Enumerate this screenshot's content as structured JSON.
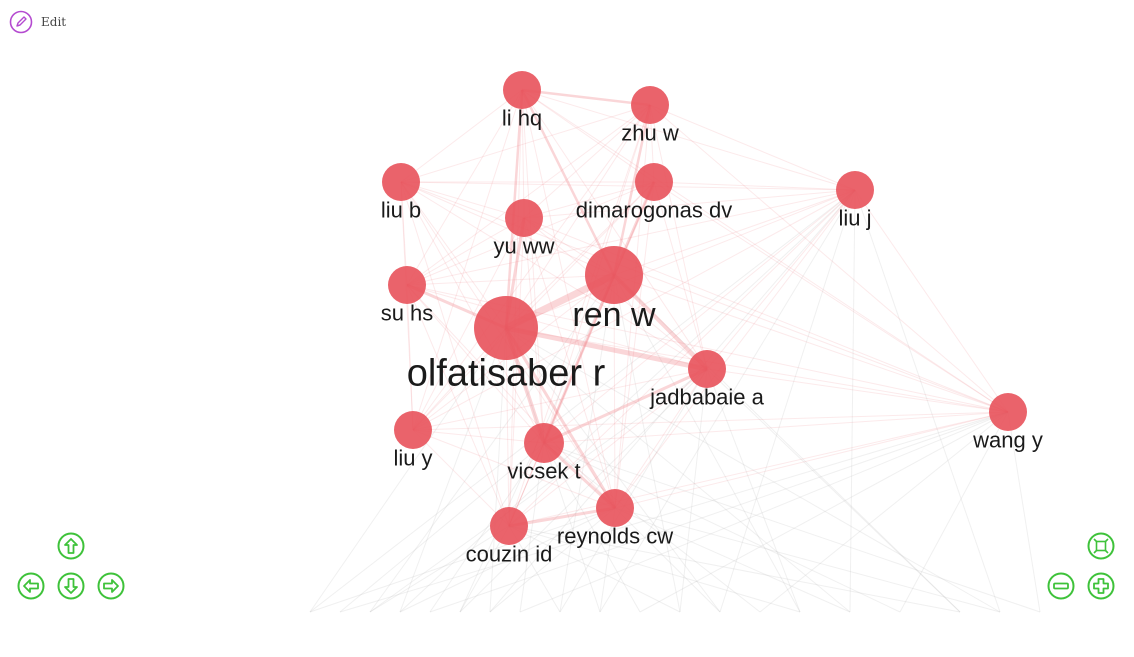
{
  "toolbar": {
    "edit_label": "Edit"
  },
  "graph": {
    "node_color": "#e8525b",
    "edge_color": "#f08a8f",
    "nodes": [
      {
        "id": "olfatisaber r",
        "label": "olfatisaber r",
        "weight": 10
      },
      {
        "id": "ren w",
        "label": "ren w",
        "weight": 8
      },
      {
        "id": "jadbabaie a",
        "label": "jadbabaie a",
        "weight": 4
      },
      {
        "id": "vicsek t",
        "label": "vicsek t",
        "weight": 4
      },
      {
        "id": "reynolds cw",
        "label": "reynolds cw",
        "weight": 4
      },
      {
        "id": "couzin id",
        "label": "couzin id",
        "weight": 4
      },
      {
        "id": "liu y",
        "label": "liu y",
        "weight": 4
      },
      {
        "id": "su hs",
        "label": "su hs",
        "weight": 4
      },
      {
        "id": "yu ww",
        "label": "yu ww",
        "weight": 4
      },
      {
        "id": "dimarogonas dv",
        "label": "dimarogonas dv",
        "weight": 4
      },
      {
        "id": "liu b",
        "label": "liu b",
        "weight": 4
      },
      {
        "id": "li hq",
        "label": "li hq",
        "weight": 4
      },
      {
        "id": "zhu w",
        "label": "zhu w",
        "weight": 4
      },
      {
        "id": "liu j",
        "label": "liu j",
        "weight": 4
      },
      {
        "id": "wang y",
        "label": "wang y",
        "weight": 4
      }
    ]
  },
  "controls": {
    "up": "up-arrow-icon",
    "down": "down-arrow-icon",
    "left": "left-arrow-icon",
    "right": "right-arrow-icon",
    "fit": "fit-screen-icon",
    "zoom_out": "zoom-out-icon",
    "zoom_in": "zoom-in-icon",
    "color": "#3ec23a"
  }
}
